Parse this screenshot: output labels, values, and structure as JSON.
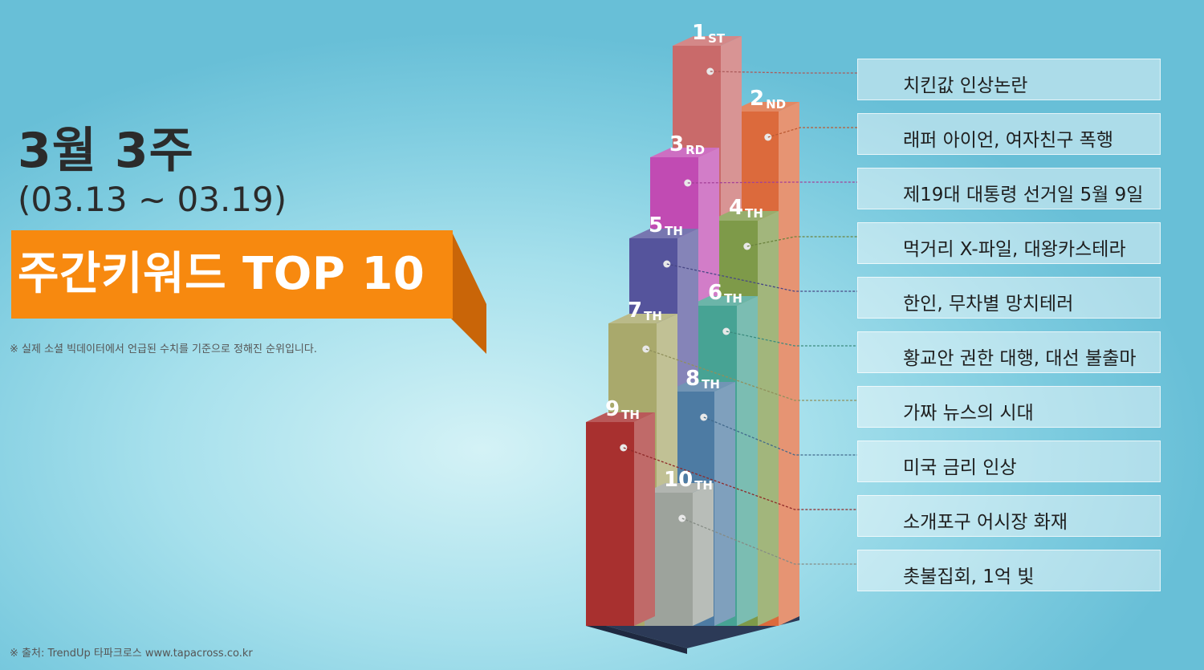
{
  "header": {
    "week": "3월 3주",
    "date_range": "(03.13 ~ 03.19)",
    "banner": "주간키워드 TOP 10",
    "note": "※ 실제 소셜 빅데이터에서 언급된 수치를 기준으로 정해진 순위입니다.",
    "source": "※ 출처: TrendUp  타파크로스  www.tapacross.co.kr"
  },
  "colors": {
    "banner": "#f7890f",
    "banner_shadow": "#c96508"
  },
  "chart_data": {
    "type": "bar",
    "title": "주간키워드 TOP 10",
    "categories": [
      "치킨값 인상논란",
      "래퍼 아이언, 여자친구 폭행",
      "제19대 대통령 선거일 5월 9일",
      "먹거리 X-파일, 대왕카스테라",
      "한인, 무차별 망치테러",
      "황교안 권한 대행, 대선 불출마",
      "가짜 뉴스의 시대",
      "미국 금리 인상",
      "소개포구 어시장 화재",
      "촛불집회, 1억 빛"
    ],
    "rank_labels": [
      {
        "num": "1",
        "suffix": "ST"
      },
      {
        "num": "2",
        "suffix": "ND"
      },
      {
        "num": "3",
        "suffix": "RD"
      },
      {
        "num": "4",
        "suffix": "TH"
      },
      {
        "num": "5",
        "suffix": "TH"
      },
      {
        "num": "6",
        "suffix": "TH"
      },
      {
        "num": "7",
        "suffix": "TH"
      },
      {
        "num": "8",
        "suffix": "TH"
      },
      {
        "num": "9",
        "suffix": "TH"
      },
      {
        "num": "10",
        "suffix": "TH"
      }
    ],
    "values": [
      10,
      9,
      8,
      7,
      6,
      5,
      4,
      3,
      2,
      1
    ],
    "bar_colors": [
      "#c96a6a",
      "#dc6a3c",
      "#c14bb3",
      "#7e9a49",
      "#55549c",
      "#47a394",
      "#a9a96c",
      "#4d7ba3",
      "#a8302f",
      "#9da39c"
    ]
  }
}
